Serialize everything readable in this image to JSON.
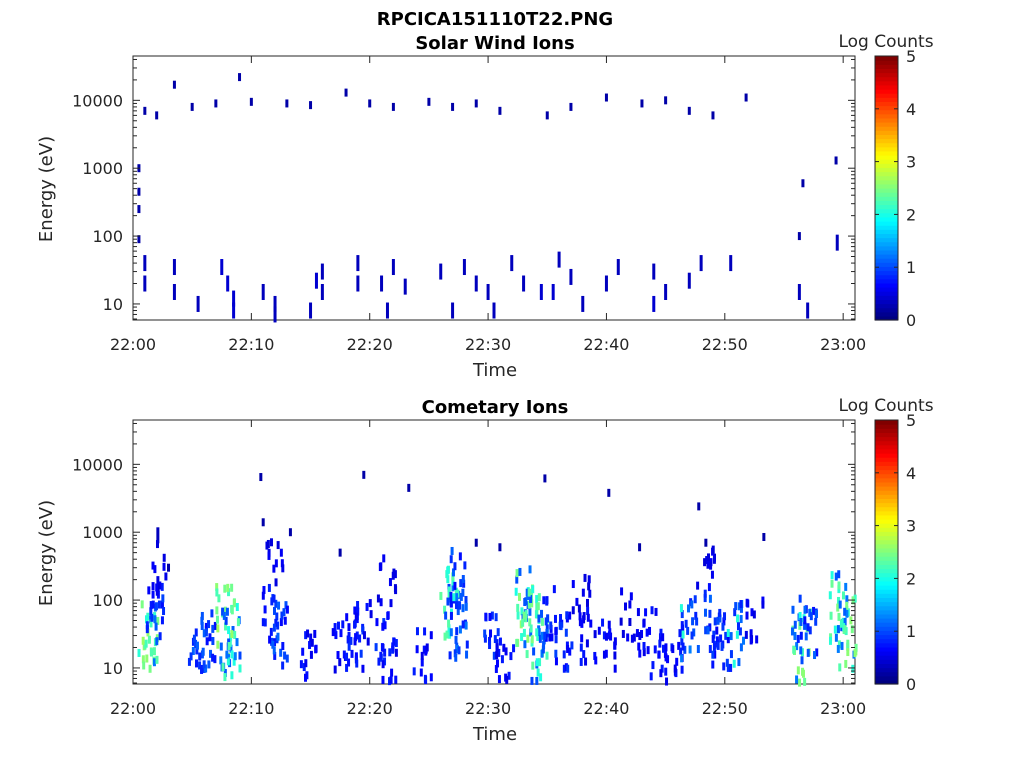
{
  "figure_title": "RPCICA151110T22.PNG",
  "chart_data": [
    {
      "type": "heatmap",
      "title": "Solar Wind Ions",
      "xlabel": "Time",
      "ylabel": "Energy (eV)",
      "xticks": [
        "22:00",
        "22:10",
        "22:20",
        "22:30",
        "22:40",
        "22:50",
        "23:00"
      ],
      "xlim_minutes": [
        0,
        61
      ],
      "yscale": "log",
      "ylim": [
        5.8,
        45000
      ],
      "yticks": [
        10,
        100,
        1000,
        10000
      ],
      "yticklabels": [
        "10",
        "100",
        "1000",
        "10000"
      ],
      "colorbar": {
        "label": "Log Counts",
        "range": [
          0,
          5
        ],
        "ticks": [
          "0",
          "1",
          "2",
          "3",
          "4",
          "5"
        ]
      },
      "points": [
        [
          3.5,
          17000,
          0.1
        ],
        [
          9,
          22000,
          0.1
        ],
        [
          18,
          13000,
          0.1
        ],
        [
          51.8,
          11000,
          0.1
        ],
        [
          59.4,
          1300,
          0.1
        ],
        [
          56.6,
          600,
          0.1
        ],
        [
          1,
          7000,
          0.1
        ],
        [
          2,
          6000,
          0.1
        ],
        [
          5,
          8000,
          0.1
        ],
        [
          7,
          9000,
          0.1
        ],
        [
          10,
          9500,
          0.1
        ],
        [
          13,
          9000,
          0.1
        ],
        [
          15,
          8500,
          0.1
        ],
        [
          20,
          9000,
          0.1
        ],
        [
          22,
          8000,
          0.1
        ],
        [
          25,
          9500,
          0.1
        ],
        [
          27,
          8000,
          0.1
        ],
        [
          29,
          9000,
          0.1
        ],
        [
          31,
          7000,
          0.1
        ],
        [
          35,
          6000,
          0.1
        ],
        [
          37,
          8000,
          0.1
        ],
        [
          40,
          11000,
          0.1
        ],
        [
          43,
          9000,
          0.1
        ],
        [
          45,
          10000,
          0.1
        ],
        [
          47,
          7000,
          0.1
        ],
        [
          49,
          6000,
          0.1
        ],
        [
          0.5,
          1000,
          0.1
        ],
        [
          0.5,
          450,
          0.1
        ],
        [
          0.5,
          250,
          0.1
        ],
        [
          0.5,
          90,
          0.1
        ],
        [
          1,
          40,
          0.2
        ],
        [
          1,
          20,
          0.2
        ],
        [
          3.5,
          35,
          0.2
        ],
        [
          3.5,
          15,
          0.2
        ],
        [
          5.5,
          10,
          0.2
        ],
        [
          7.5,
          35,
          0.3
        ],
        [
          8,
          20,
          0.3
        ],
        [
          8.5,
          12,
          0.3
        ],
        [
          8.5,
          8,
          0.3
        ],
        [
          11,
          15,
          0.2
        ],
        [
          12,
          10,
          0.2
        ],
        [
          12,
          7,
          0.2
        ],
        [
          15.5,
          22,
          0.3
        ],
        [
          16,
          30,
          0.2
        ],
        [
          16,
          15,
          0.2
        ],
        [
          15,
          8,
          0.2
        ],
        [
          19,
          20,
          0.2
        ],
        [
          19,
          40,
          0.2
        ],
        [
          21,
          20,
          0.2
        ],
        [
          21.5,
          8,
          0.2
        ],
        [
          22,
          35,
          0.2
        ],
        [
          23,
          18,
          0.2
        ],
        [
          26,
          30,
          0.2
        ],
        [
          27,
          8,
          0.2
        ],
        [
          28,
          35,
          0.2
        ],
        [
          29,
          20,
          0.2
        ],
        [
          30,
          15,
          0.2
        ],
        [
          30.5,
          8,
          0.2
        ],
        [
          32,
          40,
          0.2
        ],
        [
          33,
          20,
          0.2
        ],
        [
          34.5,
          15,
          0.3
        ],
        [
          35.5,
          15,
          0.3
        ],
        [
          36,
          45,
          0.2
        ],
        [
          37,
          25,
          0.2
        ],
        [
          38,
          10,
          0.2
        ],
        [
          40,
          20,
          0.2
        ],
        [
          41,
          35,
          0.2
        ],
        [
          44,
          10,
          0.3
        ],
        [
          44,
          30,
          0.2
        ],
        [
          45,
          15,
          0.2
        ],
        [
          47,
          22,
          0.2
        ],
        [
          48,
          40,
          0.2
        ],
        [
          50.5,
          40,
          0.2
        ],
        [
          56.3,
          15,
          0.2
        ],
        [
          57,
          8,
          0.2
        ],
        [
          59.5,
          80,
          0.2
        ],
        [
          56.3,
          100,
          0.1
        ]
      ]
    },
    {
      "type": "heatmap",
      "title": "Cometary Ions",
      "xlabel": "Time",
      "ylabel": "Energy (eV)",
      "xticks": [
        "22:00",
        "22:10",
        "22:20",
        "22:30",
        "22:40",
        "22:50",
        "23:00"
      ],
      "xlim_minutes": [
        0,
        61
      ],
      "yscale": "log",
      "ylim": [
        5.8,
        45000
      ],
      "yticks": [
        10,
        100,
        1000,
        10000
      ],
      "yticklabels": [
        "10",
        "100",
        "1000",
        "10000"
      ],
      "colorbar": {
        "label": "Log Counts",
        "range": [
          0,
          5
        ],
        "ticks": [
          "0",
          "1",
          "2",
          "3",
          "4",
          "5"
        ]
      },
      "clusters": [
        [
          1.3,
          30,
          1.0
        ],
        [
          2.0,
          60,
          0.4
        ],
        [
          2.3,
          300,
          0.2
        ],
        [
          5.5,
          15,
          0.5
        ],
        [
          6.3,
          25,
          0.5
        ],
        [
          7.8,
          40,
          1.0
        ],
        [
          8.3,
          25,
          0.8
        ],
        [
          11.8,
          60,
          0.4
        ],
        [
          12.0,
          400,
          0.2
        ],
        [
          12.3,
          30,
          0.5
        ],
        [
          14.7,
          15,
          0.3
        ],
        [
          17.5,
          20,
          0.3
        ],
        [
          18.8,
          25,
          0.4
        ],
        [
          19.5,
          60,
          0.3
        ],
        [
          21.3,
          30,
          0.4
        ],
        [
          21.5,
          200,
          0.2
        ],
        [
          21.8,
          10,
          0.3
        ],
        [
          24.5,
          15,
          0.3
        ],
        [
          26.8,
          100,
          0.8
        ],
        [
          27.3,
          200,
          0.5
        ],
        [
          27.5,
          40,
          0.6
        ],
        [
          30.5,
          25,
          0.4
        ],
        [
          31.5,
          12,
          0.3
        ],
        [
          33.0,
          80,
          0.9
        ],
        [
          33.8,
          40,
          0.9
        ],
        [
          34.5,
          20,
          0.7
        ],
        [
          35.5,
          60,
          0.4
        ],
        [
          36.3,
          25,
          0.4
        ],
        [
          37.8,
          100,
          0.2
        ],
        [
          38.5,
          30,
          0.3
        ],
        [
          40.0,
          20,
          0.3
        ],
        [
          42.0,
          60,
          0.2
        ],
        [
          43.5,
          30,
          0.3
        ],
        [
          44.5,
          15,
          0.3
        ],
        [
          45.8,
          20,
          0.3
        ],
        [
          47.0,
          35,
          0.6
        ],
        [
          48.5,
          300,
          0.2
        ],
        [
          49.0,
          60,
          0.5
        ],
        [
          49.5,
          25,
          0.4
        ],
        [
          51.0,
          30,
          0.6
        ],
        [
          52.5,
          50,
          0.2
        ],
        [
          56.5,
          20,
          0.9
        ],
        [
          57.0,
          40,
          0.5
        ],
        [
          59.6,
          70,
          0.8
        ],
        [
          60.3,
          30,
          0.9
        ]
      ],
      "points": [
        [
          10.8,
          6500,
          0.1
        ],
        [
          19.5,
          7000,
          0.1
        ],
        [
          23.3,
          4500,
          0.1
        ],
        [
          34.8,
          6200,
          0.1
        ],
        [
          40.2,
          3800,
          0.1
        ],
        [
          47.8,
          2400,
          0.1
        ],
        [
          11.0,
          1400,
          0.1
        ],
        [
          13.3,
          1000,
          0.1
        ],
        [
          53.3,
          850,
          0.1
        ],
        [
          2.1,
          900,
          0.2
        ],
        [
          29.0,
          700,
          0.1
        ],
        [
          31.0,
          600,
          0.1
        ],
        [
          42.8,
          600,
          0.1
        ],
        [
          48.4,
          700,
          0.1
        ],
        [
          17.5,
          500,
          0.1
        ],
        [
          3.0,
          300,
          0.1
        ]
      ]
    }
  ]
}
